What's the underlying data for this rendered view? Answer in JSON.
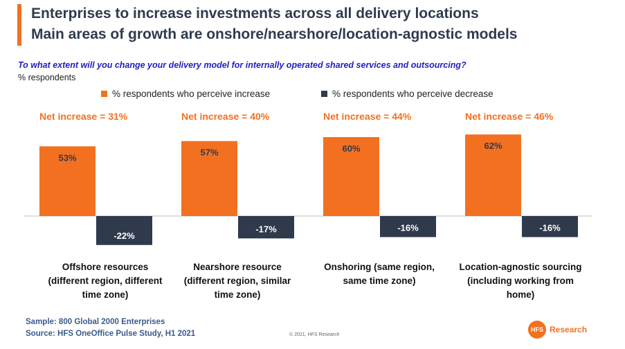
{
  "header": {
    "title_line1": "Enterprises to increase investments across all delivery locations",
    "title_line2": "Main areas of growth are onshore/nearshore/location-agnostic models",
    "question": "To what extent will you change your delivery model for internally operated shared services and outsourcing?",
    "units": "% respondents"
  },
  "colors": {
    "accent": "#f37021",
    "increase": "#f37021",
    "decrease": "#2f3a4d"
  },
  "chart_data": {
    "type": "bar",
    "categories": [
      [
        "Offshore resources",
        "(different region, different",
        "time zone)"
      ],
      [
        "Nearshore resource",
        "(different region, similar",
        "time zone)"
      ],
      [
        "Onshoring (same region,",
        "same time zone)"
      ],
      [
        "Location-agnostic sourcing",
        "(including working from",
        "home)"
      ]
    ],
    "series": [
      {
        "name": "% respondents who perceive increase",
        "values": [
          53,
          57,
          60,
          62
        ],
        "labels": [
          "53%",
          "57%",
          "60%",
          "62%"
        ]
      },
      {
        "name": "% respondents who perceive decrease",
        "values": [
          -22,
          -17,
          -16,
          -16
        ],
        "labels": [
          "-22%",
          "-17%",
          "-16%",
          "-16%"
        ]
      }
    ],
    "annotations": [
      "Net increase = 31%",
      "Net increase = 40%",
      "Net increase = 44%",
      "Net increase = 46%"
    ],
    "ylim": [
      -25,
      65
    ],
    "grid": false,
    "legend": "top"
  },
  "footer": {
    "sample": "Sample: 800 Global 2000 Enterprises",
    "source": "Source:  HFS OneOffice Pulse Study, H1 2021",
    "copyright": "© 2021, HFS Research",
    "logo_mark": "HFS",
    "logo_text": "Research"
  }
}
